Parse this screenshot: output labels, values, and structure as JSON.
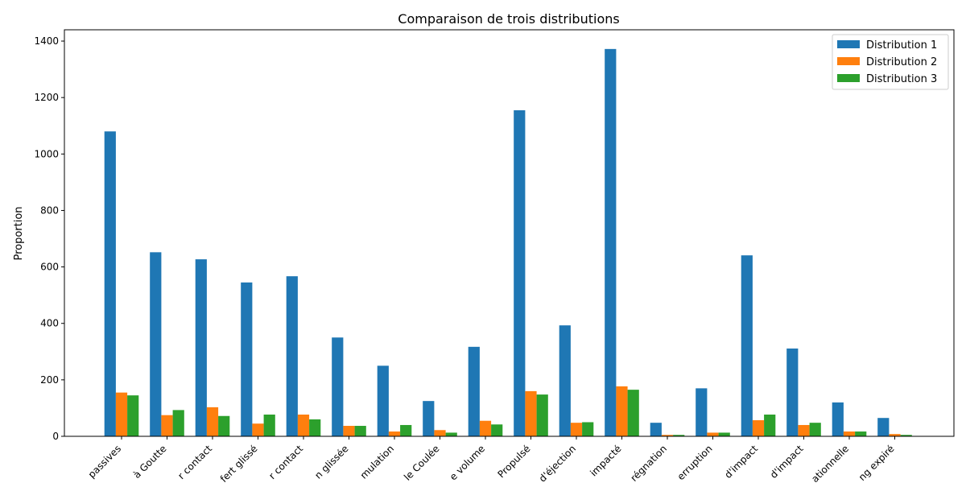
{
  "chart_data": {
    "type": "bar",
    "title": "Comparaison de trois distributions",
    "xlabel": "",
    "ylabel": "Proportion",
    "ylim": [
      0,
      1440
    ],
    "yticks": [
      0,
      200,
      400,
      600,
      800,
      1000,
      1200,
      1400
    ],
    "grid": false,
    "legend_position": "top-right",
    "categories": [
      "passives",
      "à Goutte",
      "r contact",
      "fert glissé",
      "r contact",
      "n glissée",
      "mulation",
      "le Coulée",
      "e volume",
      "Propulsé",
      "d'éjection",
      "impacté",
      "régnation",
      "erruption",
      "d'impact",
      "d'impact",
      "ationnelle",
      "ng expiré"
    ],
    "series": [
      {
        "name": "Distribution 1",
        "color": "#1f77b4",
        "values": [
          1080,
          652,
          627,
          545,
          567,
          350,
          250,
          125,
          317,
          1155,
          393,
          1372,
          48,
          170,
          641,
          311,
          120,
          65
        ]
      },
      {
        "name": "Distribution 2",
        "color": "#ff7f0e",
        "values": [
          155,
          75,
          103,
          45,
          77,
          37,
          17,
          22,
          55,
          160,
          48,
          177,
          5,
          13,
          57,
          40,
          17,
          8
        ]
      },
      {
        "name": "Distribution 3",
        "color": "#2ca02c",
        "values": [
          145,
          93,
          72,
          77,
          60,
          37,
          40,
          13,
          42,
          148,
          50,
          165,
          5,
          13,
          77,
          48,
          17,
          5
        ]
      }
    ]
  }
}
